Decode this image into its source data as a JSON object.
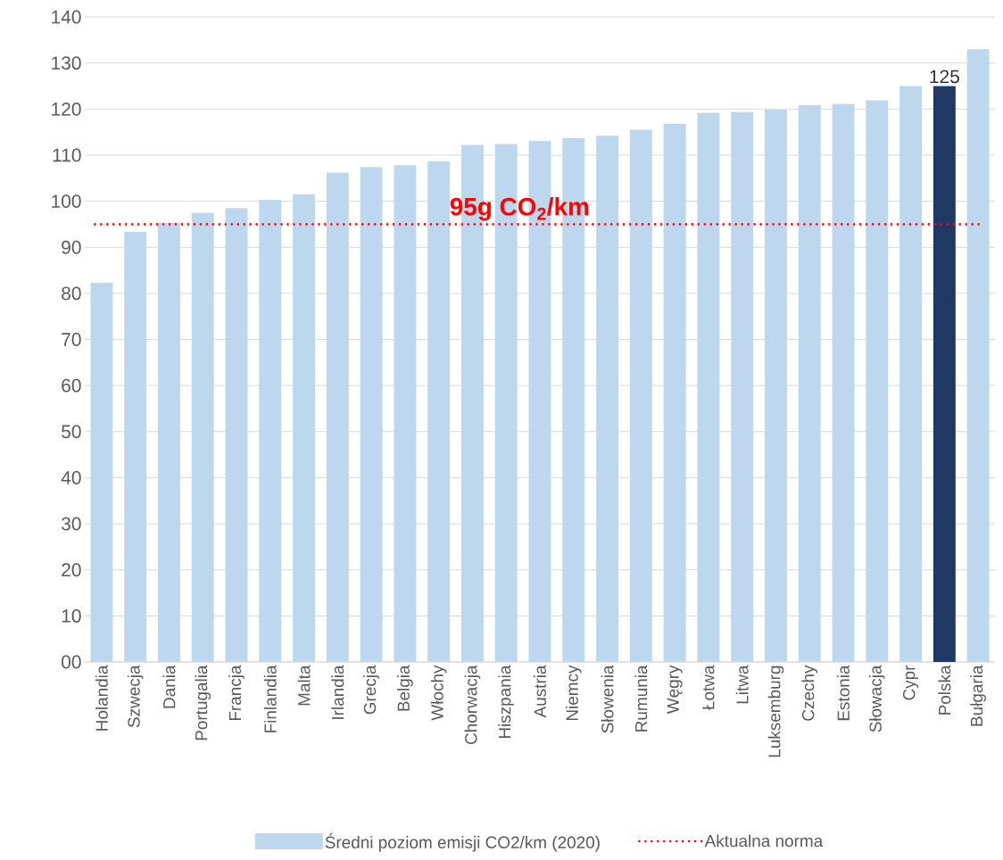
{
  "chart_data": {
    "type": "bar",
    "categories": [
      "Holandia",
      "Szwecja",
      "Dania",
      "Portugalia",
      "Francja",
      "Finlandia",
      "Malta",
      "Irlandia",
      "Grecja",
      "Belgia",
      "Włochy",
      "Chorwacja",
      "Hiszpania",
      "Austria",
      "Niemcy",
      "Słowenia",
      "Rumunia",
      "Węgry",
      "Łotwa",
      "Litwa",
      "Luksemburg",
      "Czechy",
      "Estonia",
      "Słowacja",
      "Cypr",
      "Polska",
      "Bułgaria"
    ],
    "series": [
      {
        "name": "Średni poziom emisji CO2/km (2020)",
        "color": "#bdd7ee",
        "colors": [
          "#bdd7ee",
          "#bdd7ee",
          "#bdd7ee",
          "#bdd7ee",
          "#bdd7ee",
          "#bdd7ee",
          "#bdd7ee",
          "#bdd7ee",
          "#bdd7ee",
          "#bdd7ee",
          "#bdd7ee",
          "#bdd7ee",
          "#bdd7ee",
          "#bdd7ee",
          "#bdd7ee",
          "#bdd7ee",
          "#bdd7ee",
          "#bdd7ee",
          "#bdd7ee",
          "#bdd7ee",
          "#bdd7ee",
          "#bdd7ee",
          "#bdd7ee",
          "#bdd7ee",
          "#bdd7ee",
          "#203864",
          "#bdd7ee"
        ],
        "values": [
          82.3,
          93.4,
          95.3,
          97.5,
          98.5,
          100.3,
          101.5,
          106.2,
          107.4,
          107.8,
          108.7,
          112.2,
          112.4,
          113.1,
          113.7,
          114.2,
          115.5,
          116.8,
          119.2,
          119.4,
          119.9,
          120.9,
          121.1,
          121.9,
          125.0,
          125,
          133.0
        ],
        "value_labels": [
          null,
          null,
          null,
          null,
          null,
          null,
          null,
          null,
          null,
          null,
          null,
          null,
          null,
          null,
          null,
          null,
          null,
          null,
          null,
          null,
          null,
          null,
          null,
          null,
          null,
          "125",
          null
        ]
      }
    ],
    "ylim": [
      0,
      140
    ],
    "yticks": [
      {
        "value": 0,
        "label": "00"
      },
      10,
      20,
      30,
      40,
      50,
      60,
      70,
      80,
      90,
      100,
      110,
      120,
      130,
      140
    ],
    "grid": "y",
    "legend": "bottom",
    "ref_lines": [
      {
        "axis": "y",
        "value": 95,
        "label": "Aktualna norma",
        "color": "#ff0000",
        "line_style": "dotted"
      }
    ],
    "annotations": [
      "95g CO$_{2}$/km"
    ]
  }
}
